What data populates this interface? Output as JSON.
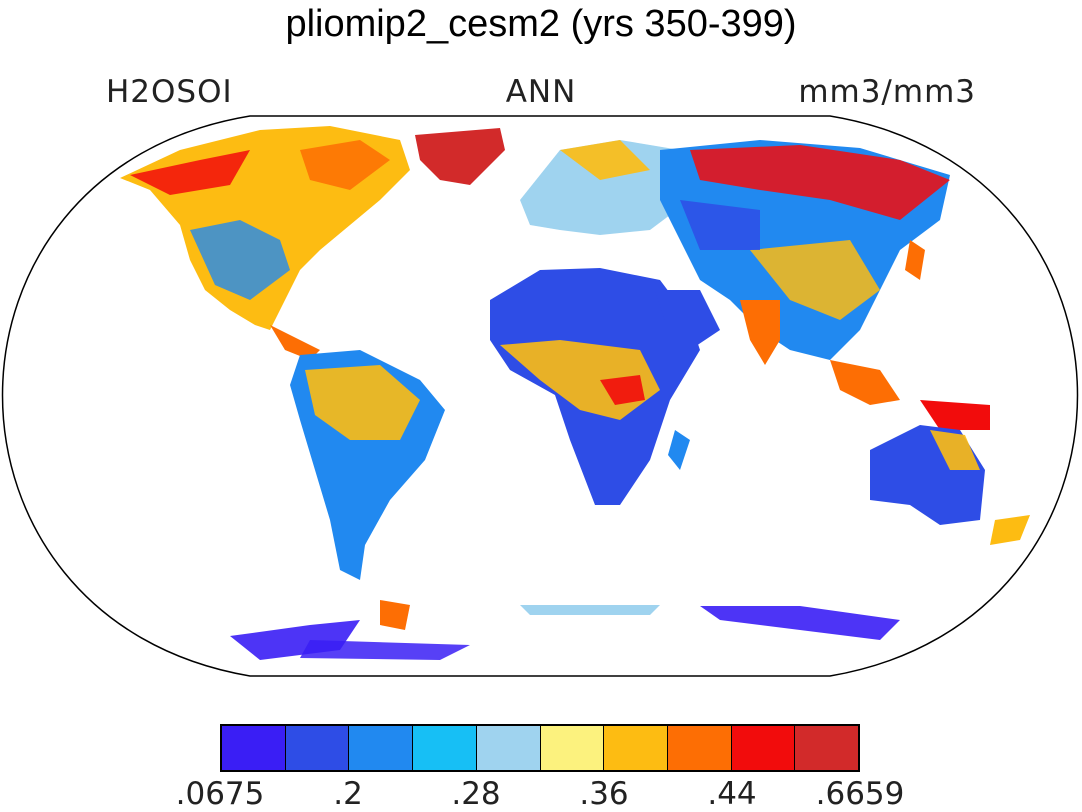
{
  "title": "pliomip2_cesm2 (yrs 350-399)",
  "labels": {
    "left": "H2OSOI",
    "center": "ANN",
    "right": "mm3/mm3"
  },
  "colorbar": {
    "colors": [
      "#3a1ef5",
      "#2e4de6",
      "#2189f0",
      "#17bff5",
      "#9fd3ef",
      "#fcf27e",
      "#fdbc12",
      "#fd6e04",
      "#f20c0c",
      "#d22a2a"
    ],
    "tick_labels": [
      ".0675",
      ".2",
      ".28",
      ".36",
      ".44",
      ".6659"
    ]
  }
}
